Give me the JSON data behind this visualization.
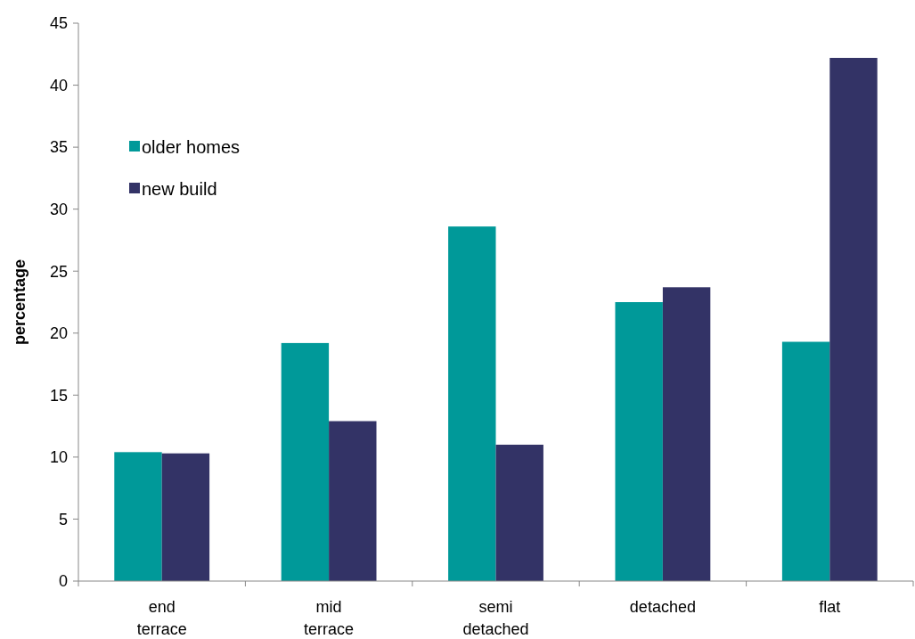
{
  "chart_data": {
    "type": "bar",
    "ylabel": "percentage",
    "categories": [
      "end terrace",
      "mid terrace",
      "semi detached",
      "detached",
      "flat"
    ],
    "series": [
      {
        "name": "older homes",
        "color": "#009999",
        "values": [
          10.4,
          19.2,
          28.6,
          22.5,
          19.3
        ]
      },
      {
        "name": "new build",
        "color": "#333366",
        "values": [
          10.3,
          12.9,
          11.0,
          23.7,
          42.2
        ]
      }
    ],
    "ylim": [
      0,
      45
    ],
    "yticks": [
      0,
      5,
      10,
      15,
      20,
      25,
      30,
      35,
      40,
      45
    ],
    "grid": false,
    "legend": "top left"
  }
}
